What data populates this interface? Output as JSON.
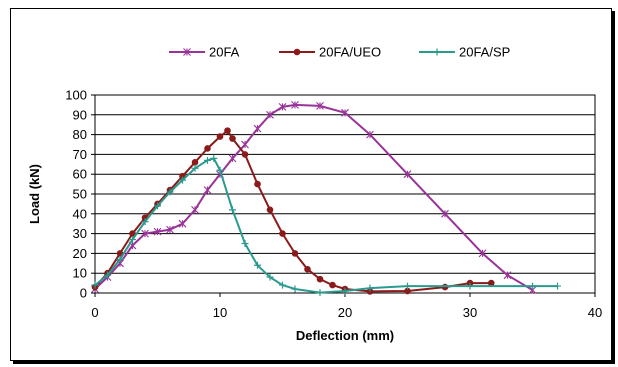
{
  "chart_data": {
    "type": "line",
    "xlabel": "Deflection (mm)",
    "ylabel": "Load (kN)",
    "xlim": [
      0,
      40
    ],
    "ylim": [
      0,
      100
    ],
    "x_ticks": [
      "0",
      "10",
      "20",
      "30",
      "40"
    ],
    "y_ticks": [
      "0",
      "10",
      "20",
      "30",
      "40",
      "50",
      "60",
      "70",
      "80",
      "90",
      "100"
    ],
    "grid": "horizontal",
    "legend_position": "top",
    "series": [
      {
        "name": "20FA",
        "color": "#993399",
        "marker": "star",
        "points": [
          [
            0,
            2
          ],
          [
            1,
            8
          ],
          [
            2,
            15
          ],
          [
            3,
            24
          ],
          [
            4,
            30
          ],
          [
            5,
            31
          ],
          [
            6,
            32
          ],
          [
            7,
            35
          ],
          [
            8,
            42
          ],
          [
            9,
            52
          ],
          [
            10,
            60
          ],
          [
            11,
            68
          ],
          [
            12,
            75
          ],
          [
            13,
            83
          ],
          [
            14,
            90
          ],
          [
            15,
            94
          ],
          [
            16,
            95
          ],
          [
            18,
            94.5
          ],
          [
            20,
            91
          ],
          [
            22,
            80
          ],
          [
            25,
            60
          ],
          [
            28,
            40
          ],
          [
            31,
            20
          ],
          [
            33,
            9
          ],
          [
            35,
            1.5
          ]
        ]
      },
      {
        "name": "20FA/UEO",
        "color": "#8B1A1A",
        "marker": "circle",
        "points": [
          [
            0,
            3
          ],
          [
            1,
            10
          ],
          [
            2,
            20
          ],
          [
            3,
            30
          ],
          [
            4,
            38
          ],
          [
            5,
            45
          ],
          [
            6,
            52
          ],
          [
            7,
            59
          ],
          [
            8,
            66
          ],
          [
            9,
            73
          ],
          [
            10,
            79
          ],
          [
            10.6,
            82
          ],
          [
            11,
            78
          ],
          [
            12,
            70
          ],
          [
            13,
            55
          ],
          [
            14,
            42
          ],
          [
            15,
            30
          ],
          [
            16,
            20
          ],
          [
            17,
            12
          ],
          [
            18,
            7
          ],
          [
            19,
            4
          ],
          [
            20,
            2
          ],
          [
            22,
            0.8
          ],
          [
            25,
            1
          ],
          [
            28,
            3
          ],
          [
            30,
            5
          ],
          [
            31.7,
            5
          ]
        ]
      },
      {
        "name": "20FA/SP",
        "color": "#2A9A8F",
        "marker": "plus",
        "points": [
          [
            0,
            4
          ],
          [
            1,
            9
          ],
          [
            2,
            17
          ],
          [
            3,
            27
          ],
          [
            4,
            36
          ],
          [
            5,
            44
          ],
          [
            6,
            51
          ],
          [
            7,
            57
          ],
          [
            8,
            63
          ],
          [
            9,
            67
          ],
          [
            9.5,
            68
          ],
          [
            10,
            62
          ],
          [
            11,
            42
          ],
          [
            12,
            25
          ],
          [
            13,
            14
          ],
          [
            14,
            8
          ],
          [
            15,
            4
          ],
          [
            16,
            2
          ],
          [
            18,
            0.2
          ],
          [
            20,
            1
          ],
          [
            22,
            2.5
          ],
          [
            25,
            3.5
          ],
          [
            30,
            3.5
          ],
          [
            35,
            3.5
          ],
          [
            37,
            3.5
          ]
        ]
      }
    ]
  }
}
